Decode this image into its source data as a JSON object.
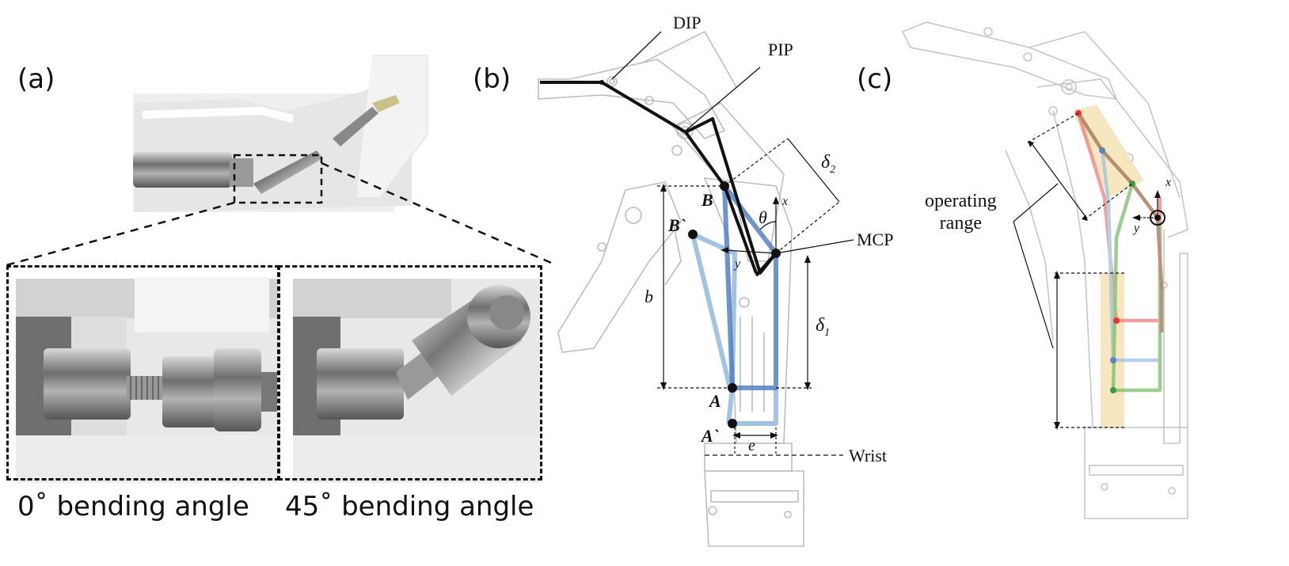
{
  "panel_a": {
    "label": "(a)",
    "captions": [
      "0˚ bending angle",
      "45˚ bending angle"
    ]
  },
  "panel_b": {
    "label": "(b)",
    "joint_labels": {
      "dip": "DIP",
      "pip": "PIP",
      "mcp": "MCP",
      "wrist": "Wrist"
    },
    "point_labels": {
      "b": "B",
      "b_prime": "B`",
      "a": "A",
      "a_prime": "A`"
    },
    "dimension_labels": {
      "b": "b",
      "delta2": "δ",
      "delta2_sub": "2",
      "delta1": "δ",
      "delta1_sub": "1",
      "e": "e",
      "theta": "θ",
      "x": "x",
      "y": "y"
    }
  },
  "panel_c": {
    "label": "(c)",
    "operating_range_label": [
      "operating",
      "range"
    ],
    "axis_labels": {
      "x": "x",
      "y": "y"
    },
    "colors": {
      "red": "#f08080",
      "blue": "#7fa8d6",
      "green": "#7dbb6a",
      "brown": "#a07050",
      "band": "#f5e3b5"
    }
  },
  "colors": {
    "black_link": "#111111",
    "blue_link_dark": "#4a7bbf",
    "blue_link_light": "#93b9e0",
    "outline_gray": "#b9b9b9"
  }
}
